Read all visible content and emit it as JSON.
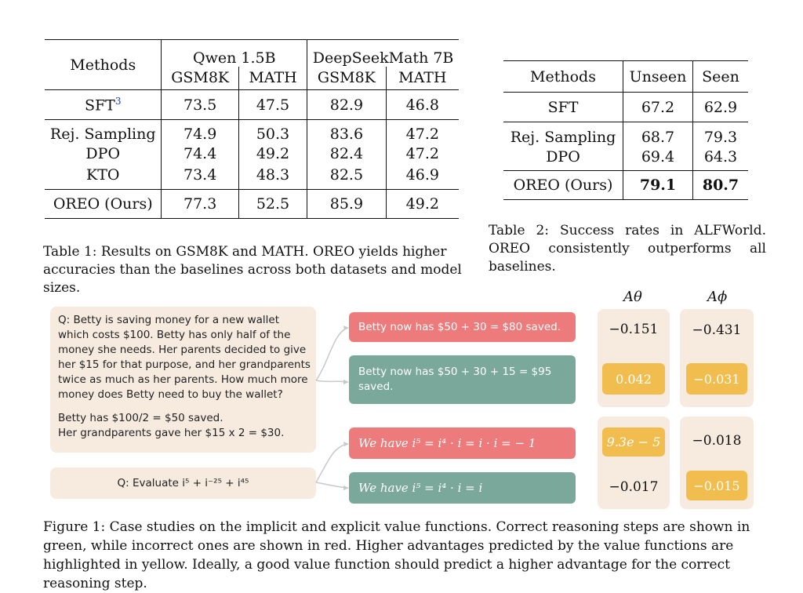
{
  "table1": {
    "group_headers": [
      "Qwen 1.5B",
      "DeepSeekMath 7B"
    ],
    "methods_header": "Methods",
    "sub_headers": [
      "GSM8K",
      "MATH",
      "GSM8K",
      "MATH"
    ],
    "sft_label": "SFT",
    "sft_footnote": "3",
    "sft": [
      "73.5",
      "47.5",
      "82.9",
      "46.8"
    ],
    "rows": [
      {
        "method": "Rej. Sampling",
        "values": [
          "74.9",
          "50.3",
          "83.6",
          "47.2"
        ]
      },
      {
        "method": "DPO",
        "values": [
          "74.4",
          "49.2",
          "82.4",
          "47.2"
        ]
      },
      {
        "method": "KTO",
        "values": [
          "73.4",
          "48.3",
          "82.5",
          "46.9"
        ]
      }
    ],
    "oreo": {
      "method": "OREO (Ours)",
      "values": [
        "77.3",
        "52.5",
        "85.9",
        "49.2"
      ]
    },
    "caption": "Table 1: Results on GSM8K and MATH. OREO yields higher accuracies than the baselines across both datasets and model sizes."
  },
  "table2": {
    "headers": [
      "Methods",
      "Unseen",
      "Seen"
    ],
    "sft": {
      "method": "SFT",
      "values": [
        "67.2",
        "62.9"
      ]
    },
    "rows": [
      {
        "method": "Rej. Sampling",
        "values": [
          "68.7",
          "79.3"
        ]
      },
      {
        "method": "DPO",
        "values": [
          "69.4",
          "64.3"
        ]
      }
    ],
    "oreo": {
      "method": "OREO (Ours)",
      "values": [
        "79.1",
        "80.7"
      ]
    },
    "caption": "Table 2: Success rates in ALFWorld. OREO consistently outperforms all baselines."
  },
  "figure": {
    "col_headers": [
      "Aθ",
      "Aϕ"
    ],
    "q1_lines": [
      "Q: Betty is saving money for a new wallet",
      "which costs $100. Betty has only half of the",
      "money she needs. Her parents decided to give",
      "her $15 for that purpose, and her grandparents",
      "twice as much as her parents. How much more",
      "money does Betty need to buy the wallet?"
    ],
    "q1_steps": [
      "Betty has $100/2 = $50 saved.",
      "Her grandparents gave her $15 x 2 = $30."
    ],
    "q2": "Q: Evaluate i⁵ + i⁻²⁵ + i⁴⁵",
    "steps": [
      {
        "text": "Betty now has $50 + 30 = $80 saved.",
        "a_theta": "−0.151",
        "a_phi": "−0.431"
      },
      {
        "text": "Betty now has $50 + 30 + 15 = $95 saved.",
        "a_theta": "0.042",
        "a_phi": "−0.031"
      },
      {
        "text": "We have i⁵ = i⁴ · i = i · i = − 1",
        "a_theta": "9.3e − 5",
        "a_phi": "−0.018"
      },
      {
        "text": "We have i⁵ = i⁴ · i = i",
        "a_theta": "−0.017",
        "a_phi": "−0.015"
      }
    ],
    "caption": "Figure 1: Case studies on the implicit and explicit value functions. Correct reasoning steps are shown in green, while incorrect ones are shown in red. Higher advantages predicted by the value functions are highlighted in yellow. Ideally, a good value function should predict a higher advantage for the correct reasoning step."
  },
  "colors": {
    "correct": "#7aa89a",
    "incorrect": "#ee7b7b",
    "highlight": "#f1bd4f",
    "panel": "#f7ebe0"
  }
}
